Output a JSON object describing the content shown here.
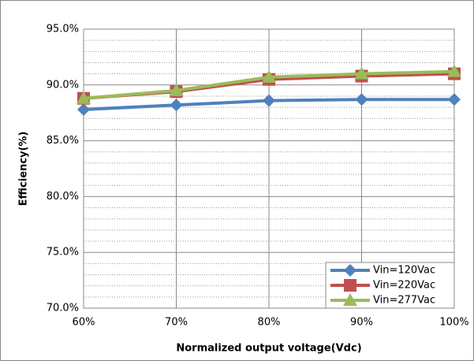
{
  "chart_data": {
    "type": "line",
    "x_label": "Normalized output voltage(Vdc)",
    "y_label": "Efficiency(%)",
    "x": [
      60,
      70,
      80,
      90,
      100
    ],
    "xlim": [
      60,
      100
    ],
    "xticks": [
      {
        "value": 60,
        "label": "60%"
      },
      {
        "value": 70,
        "label": "70%"
      },
      {
        "value": 80,
        "label": "80%"
      },
      {
        "value": 90,
        "label": "90%"
      },
      {
        "value": 100,
        "label": "100%"
      }
    ],
    "ylim": [
      70,
      95
    ],
    "yticks": [
      {
        "value": 70,
        "label": "70.0%"
      },
      {
        "value": 75,
        "label": "75.0%"
      },
      {
        "value": 80,
        "label": "80.0%"
      },
      {
        "value": 85,
        "label": "85.0%"
      },
      {
        "value": 90,
        "label": "90.0%"
      },
      {
        "value": 95,
        "label": "95.0%"
      }
    ],
    "minor_yticks": [
      71,
      72,
      73,
      74,
      76,
      77,
      78,
      79,
      81,
      82,
      83,
      84,
      86,
      87,
      88,
      89,
      91,
      92,
      93,
      94
    ],
    "grid": true,
    "legend": "lower right",
    "series": [
      {
        "name": "Vin=120Vac",
        "color": "#4f81bd",
        "marker": "diamond",
        "values": [
          87.8,
          88.2,
          88.6,
          88.7,
          88.7
        ]
      },
      {
        "name": "Vin=220Vac",
        "color": "#c0504d",
        "marker": "square",
        "values": [
          88.8,
          89.4,
          90.5,
          90.8,
          91.0
        ]
      },
      {
        "name": "Vin=277Vac",
        "color": "#9bbb59",
        "marker": "triangle",
        "values": [
          88.8,
          89.5,
          90.7,
          91.0,
          91.2
        ]
      }
    ]
  }
}
